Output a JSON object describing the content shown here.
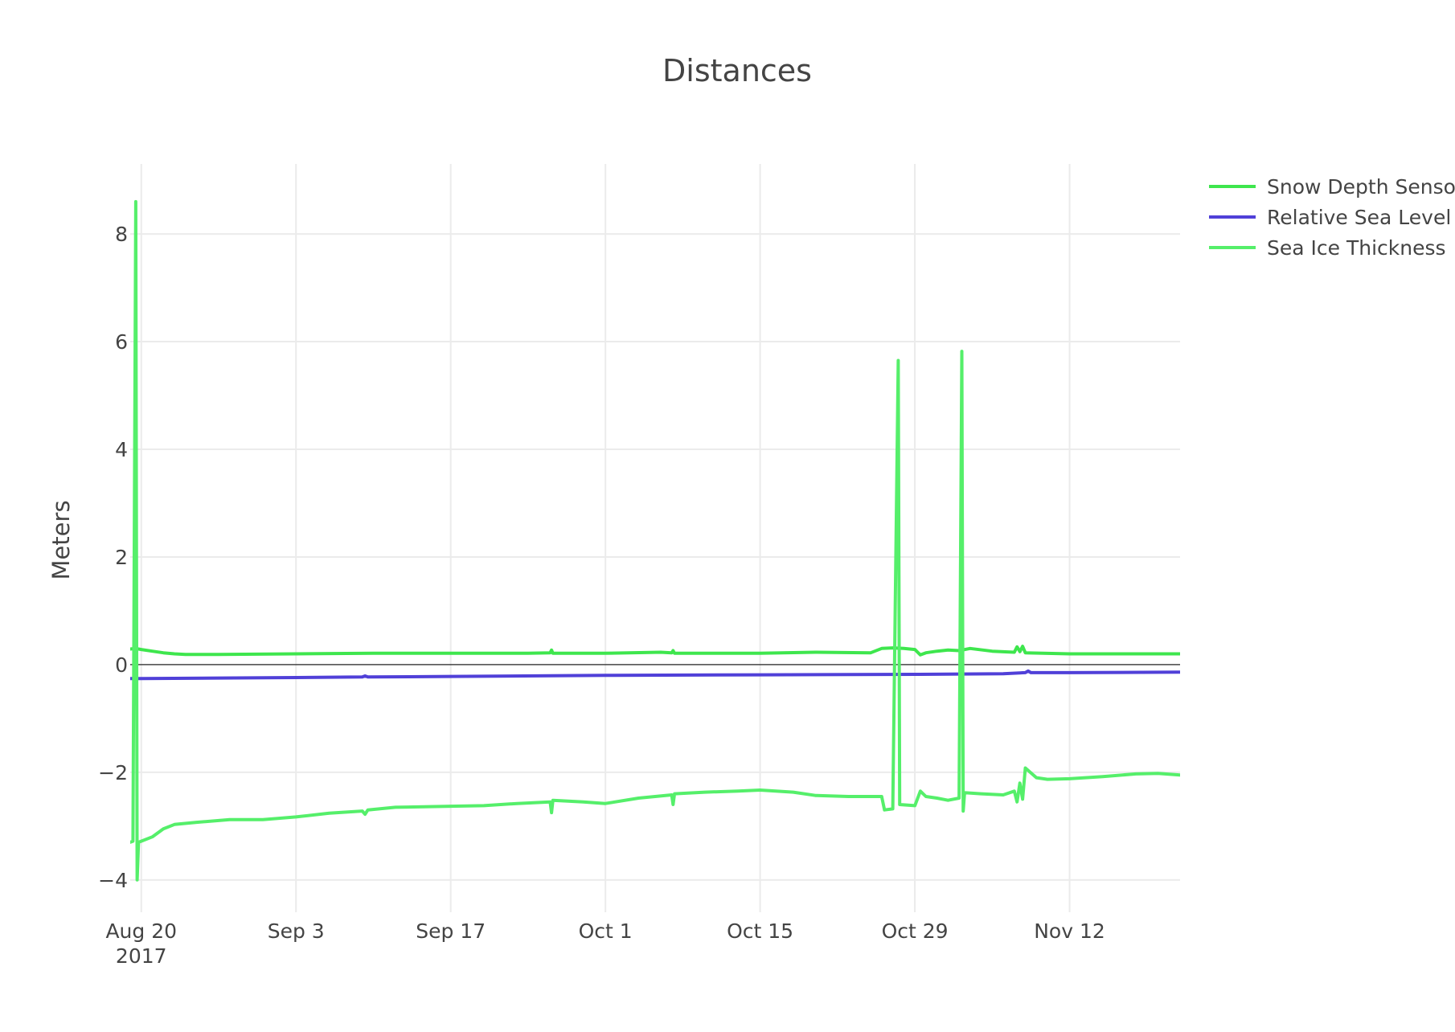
{
  "chart_data": {
    "type": "line",
    "title": "Distances",
    "xlabel": "",
    "ylabel": "Meters",
    "x_range": [
      "2017-08-19",
      "2017-11-22"
    ],
    "ylim": [
      -4.6,
      9.3
    ],
    "grid": true,
    "legend_position": "top-right",
    "x_ticks": [
      {
        "date": "2017-08-20",
        "label": "Aug 20",
        "sublabel": "2017"
      },
      {
        "date": "2017-09-03",
        "label": "Sep 3"
      },
      {
        "date": "2017-09-17",
        "label": "Sep 17"
      },
      {
        "date": "2017-10-01",
        "label": "Oct 1"
      },
      {
        "date": "2017-10-15",
        "label": "Oct 15"
      },
      {
        "date": "2017-10-29",
        "label": "Oct 29"
      },
      {
        "date": "2017-11-12",
        "label": "Nov 12"
      }
    ],
    "y_ticks": [
      {
        "value": 8,
        "label": "8"
      },
      {
        "value": 6,
        "label": "6"
      },
      {
        "value": 4,
        "label": "4"
      },
      {
        "value": 2,
        "label": "2"
      },
      {
        "value": 0,
        "label": "0"
      },
      {
        "value": -2,
        "label": "−2"
      },
      {
        "value": -4,
        "label": "−4"
      }
    ],
    "series": [
      {
        "name": "Snow Depth Sensor",
        "color": "#3ee64d",
        "points": [
          [
            "2017-08-18",
            0.28
          ],
          [
            "2017-08-19",
            0.29
          ],
          [
            "2017-08-19T12:00",
            0.3
          ],
          [
            "2017-08-20",
            0.28
          ],
          [
            "2017-08-21",
            0.25
          ],
          [
            "2017-08-22",
            0.22
          ],
          [
            "2017-08-23",
            0.2
          ],
          [
            "2017-08-24",
            0.19
          ],
          [
            "2017-08-27",
            0.19
          ],
          [
            "2017-09-03",
            0.2
          ],
          [
            "2017-09-10",
            0.21
          ],
          [
            "2017-09-17",
            0.21
          ],
          [
            "2017-09-24",
            0.21
          ],
          [
            "2017-09-26",
            0.22
          ],
          [
            "2017-09-26T03:00",
            0.27
          ],
          [
            "2017-09-26T06:00",
            0.21
          ],
          [
            "2017-10-01",
            0.21
          ],
          [
            "2017-10-06",
            0.23
          ],
          [
            "2017-10-07",
            0.22
          ],
          [
            "2017-10-07T03:00",
            0.26
          ],
          [
            "2017-10-07T06:00",
            0.21
          ],
          [
            "2017-10-15",
            0.21
          ],
          [
            "2017-10-20",
            0.23
          ],
          [
            "2017-10-25",
            0.22
          ],
          [
            "2017-10-26",
            0.3
          ],
          [
            "2017-10-27",
            0.31
          ],
          [
            "2017-10-28",
            0.3
          ],
          [
            "2017-10-29",
            0.28
          ],
          [
            "2017-10-29T12:00",
            0.18
          ],
          [
            "2017-10-30",
            0.22
          ],
          [
            "2017-10-31",
            0.25
          ],
          [
            "2017-11-01",
            0.27
          ],
          [
            "2017-11-02",
            0.26
          ],
          [
            "2017-11-03",
            0.3
          ],
          [
            "2017-11-05",
            0.25
          ],
          [
            "2017-11-07",
            0.23
          ],
          [
            "2017-11-07T06:00",
            0.33
          ],
          [
            "2017-11-07T12:00",
            0.24
          ],
          [
            "2017-11-07T18:00",
            0.34
          ],
          [
            "2017-11-08",
            0.22
          ],
          [
            "2017-11-12",
            0.2
          ],
          [
            "2017-11-17",
            0.2
          ],
          [
            "2017-11-22",
            0.2
          ]
        ]
      },
      {
        "name": "Relative Sea Level",
        "color": "#5040d8",
        "points": [
          [
            "2017-08-18",
            -0.26
          ],
          [
            "2017-08-20",
            -0.26
          ],
          [
            "2017-09-03",
            -0.24
          ],
          [
            "2017-09-09",
            -0.23
          ],
          [
            "2017-09-09T06:00",
            -0.21
          ],
          [
            "2017-09-09T12:00",
            -0.23
          ],
          [
            "2017-09-17",
            -0.22
          ],
          [
            "2017-10-01",
            -0.2
          ],
          [
            "2017-10-15",
            -0.19
          ],
          [
            "2017-10-29",
            -0.18
          ],
          [
            "2017-11-06",
            -0.17
          ],
          [
            "2017-11-08",
            -0.15
          ],
          [
            "2017-11-08T06:00",
            -0.12
          ],
          [
            "2017-11-08T12:00",
            -0.15
          ],
          [
            "2017-11-12",
            -0.15
          ],
          [
            "2017-11-22",
            -0.14
          ]
        ]
      },
      {
        "name": "Sea Ice Thickness",
        "color": "#55ef6a",
        "points": [
          [
            "2017-08-18",
            -3.3
          ],
          [
            "2017-08-19",
            -3.3
          ],
          [
            "2017-08-19T06:00",
            -3.28
          ],
          [
            "2017-08-19T12:00",
            8.6
          ],
          [
            "2017-08-19T15:00",
            -4.0
          ],
          [
            "2017-08-19T18:00",
            -3.3
          ],
          [
            "2017-08-20",
            -3.28
          ],
          [
            "2017-08-21",
            -3.2
          ],
          [
            "2017-08-22",
            -3.05
          ],
          [
            "2017-08-23",
            -2.97
          ],
          [
            "2017-08-25",
            -2.93
          ],
          [
            "2017-08-28",
            -2.88
          ],
          [
            "2017-08-31",
            -2.88
          ],
          [
            "2017-09-03",
            -2.83
          ],
          [
            "2017-09-06",
            -2.76
          ],
          [
            "2017-09-09",
            -2.72
          ],
          [
            "2017-09-09T06:00",
            -2.78
          ],
          [
            "2017-09-09T12:00",
            -2.7
          ],
          [
            "2017-09-12",
            -2.65
          ],
          [
            "2017-09-17",
            -2.63
          ],
          [
            "2017-09-20",
            -2.62
          ],
          [
            "2017-09-23",
            -2.58
          ],
          [
            "2017-09-26",
            -2.55
          ],
          [
            "2017-09-26T03:00",
            -2.75
          ],
          [
            "2017-09-26T06:00",
            -2.52
          ],
          [
            "2017-09-29",
            -2.55
          ],
          [
            "2017-10-01",
            -2.58
          ],
          [
            "2017-10-04",
            -2.48
          ],
          [
            "2017-10-07",
            -2.42
          ],
          [
            "2017-10-07T03:00",
            -2.6
          ],
          [
            "2017-10-07T06:00",
            -2.4
          ],
          [
            "2017-10-10",
            -2.37
          ],
          [
            "2017-10-13",
            -2.35
          ],
          [
            "2017-10-15",
            -2.33
          ],
          [
            "2017-10-18",
            -2.37
          ],
          [
            "2017-10-20",
            -2.43
          ],
          [
            "2017-10-23",
            -2.45
          ],
          [
            "2017-10-26",
            -2.45
          ],
          [
            "2017-10-26T06:00",
            -2.7
          ],
          [
            "2017-10-27",
            -2.68
          ],
          [
            "2017-10-27T12:00",
            5.65
          ],
          [
            "2017-10-27T15:00",
            -2.6
          ],
          [
            "2017-10-29",
            -2.62
          ],
          [
            "2017-10-29T12:00",
            -2.35
          ],
          [
            "2017-10-30",
            -2.45
          ],
          [
            "2017-10-31",
            -2.48
          ],
          [
            "2017-11-01",
            -2.52
          ],
          [
            "2017-11-02",
            -2.48
          ],
          [
            "2017-11-02T06:00",
            5.82
          ],
          [
            "2017-11-02T09:00",
            -2.72
          ],
          [
            "2017-11-02T12:00",
            -2.38
          ],
          [
            "2017-11-04",
            -2.4
          ],
          [
            "2017-11-06",
            -2.42
          ],
          [
            "2017-11-07",
            -2.35
          ],
          [
            "2017-11-07T06:00",
            -2.55
          ],
          [
            "2017-11-07T12:00",
            -2.2
          ],
          [
            "2017-11-07T18:00",
            -2.5
          ],
          [
            "2017-11-08",
            -1.92
          ],
          [
            "2017-11-09",
            -2.1
          ],
          [
            "2017-11-10",
            -2.13
          ],
          [
            "2017-11-12",
            -2.12
          ],
          [
            "2017-11-15",
            -2.08
          ],
          [
            "2017-11-18",
            -2.03
          ],
          [
            "2017-11-20",
            -2.02
          ],
          [
            "2017-11-22",
            -2.05
          ]
        ]
      }
    ]
  }
}
